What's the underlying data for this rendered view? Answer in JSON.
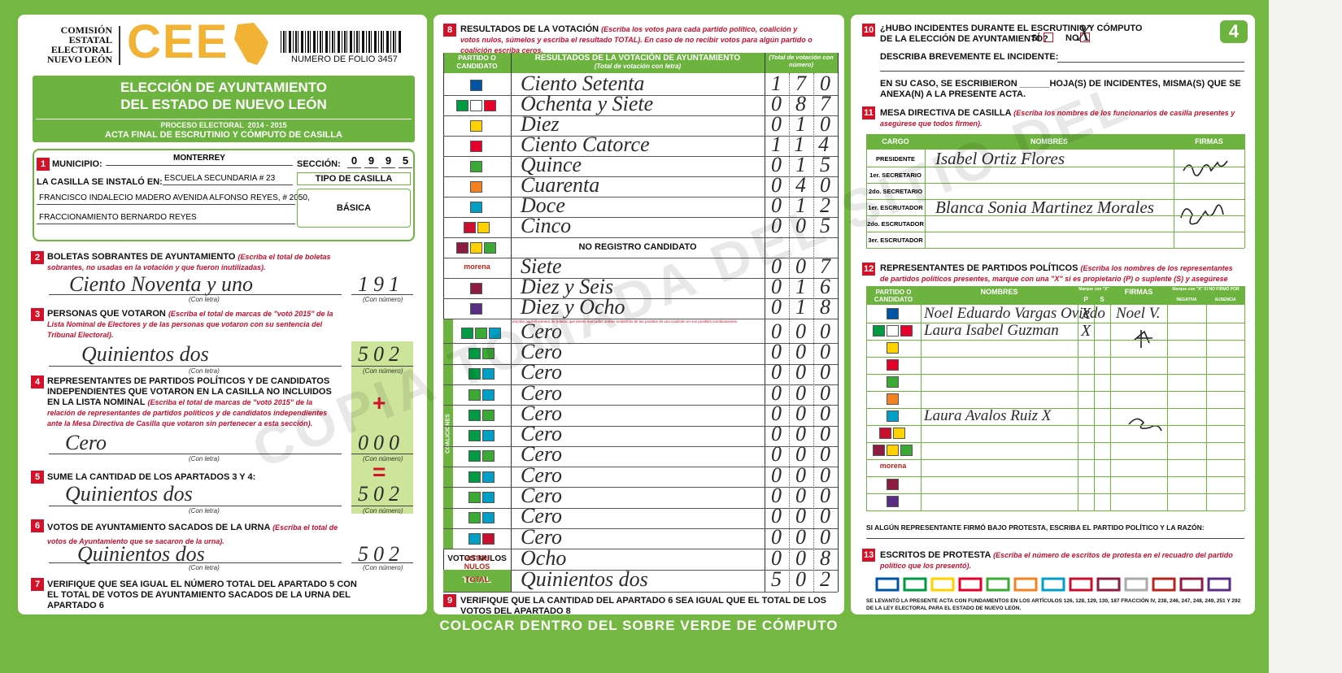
{
  "header": {
    "commission": [
      "COMISIÓN",
      "ESTATAL",
      "ELECTORAL",
      "NUEVO LEÓN"
    ],
    "logo": "CEE",
    "folio": "NUMERO DE FOLIO 3457",
    "page": "4"
  },
  "title": {
    "line1": "ELECCIÓN DE AYUNTAMIENTO",
    "line2": "DEL ESTADO DE NUEVO LEÓN",
    "process": "PROCESO ELECTORAL  2014 - 2015",
    "act": "ACTA FINAL DE ESCRUTINIO Y CÓMPUTO DE CASILLA"
  },
  "labels": {
    "letters": "(Con letra)",
    "number": "(Con número)"
  },
  "s1": {
    "num": "1",
    "municipio_label": "MUNICIPIO:",
    "municipio": "MONTERREY",
    "seccion_label": "SECCIÓN:",
    "seccion": [
      "0",
      "9",
      "9",
      "5"
    ],
    "installed_label": "LA CASILLA SE INSTALÓ EN:",
    "school": "ESCUELA SECUNDARIA # 23",
    "address1": "FRANCISCO INDALECIO MADERO AVENIDA ALFONSO REYES, # 2050,",
    "address2": "FRACCIONAMIENTO BERNARDO REYES",
    "type_label": "TIPO DE CASILLA",
    "type": "BÁSICA"
  },
  "s2": {
    "num": "2",
    "title": "BOLETAS SOBRANTES DE AYUNTAMIENTO",
    "note": "(Escriba el total de boletas sobrantes, no usadas en la votación y que fueron inutilizadas).",
    "letters": "Ciento Noventa y uno",
    "number": "191"
  },
  "s3": {
    "num": "3",
    "title": "PERSONAS QUE VOTARON",
    "note": "(Escriba el total de marcas de \"votó 2015\" de la Lista Nominal de Electores y de las personas que votaron con su sentencia del Tribunal Electoral).",
    "letters": "Quinientos dos",
    "number": "502"
  },
  "s4": {
    "num": "4",
    "title": "REPRESENTANTES DE PARTIDOS POLÍTICOS Y DE CANDIDATOS INDEPENDIENTES QUE VOTARON EN LA CASILLA NO INCLUIDOS EN LA LISTA NOMINAL",
    "note": "(Escriba el total de marcas de \"votó 2015\" de la relación de representantes de partidos políticos y de candidatos independientes ante la Mesa Directiva de Casilla que votaron sin pertenecer a esta sección).",
    "letters": "Cero",
    "number": "000",
    "sign": "+"
  },
  "s5": {
    "num": "5",
    "title": "SUME LA CANTIDAD DE LOS APARTADOS 3 Y 4:",
    "letters": "Quinientos dos",
    "number": "502",
    "sign": "="
  },
  "s6": {
    "num": "6",
    "title": "VOTOS DE AYUNTAMIENTO SACADOS DE LA URNA",
    "note": "(Escriba el total de votos de Ayuntamiento que se sacaron de la urna).",
    "letters": "Quinientos dos",
    "number": "502"
  },
  "s7": {
    "num": "7",
    "title": "VERIFIQUE QUE SEA IGUAL EL NÚMERO TOTAL DEL APARTADO 5 CON EL TOTAL DE VOTOS DE AYUNTAMIENTO SACADOS DE LA URNA DEL APARTADO 6"
  },
  "s8": {
    "num": "8",
    "title": "RESULTADOS DE LA VOTACIÓN",
    "note": "(Escriba los votos para cada partido político, coalición y votos nulos, súmelos y escriba el resultado TOTAL).",
    "note2": "En caso de no recibir votos para algún partido o coalición escriba ceros.",
    "headers": {
      "party": "PARTIDO O CANDIDATO",
      "results": "RESULTADOS DE LA VOTACIÓN DE AYUNTAMIENTO",
      "letters": "(Total de votación con letra)",
      "number": "(Total de votación con número)"
    },
    "coalition_label": "COALICIONES",
    "coalition_note": "Escriba aquí el número de boletas que tienen marcadas ambos emblemas de los partidos de una coalición en sus posibles combinaciones.",
    "rows": [
      {
        "logo": [
          "#0054a6"
        ],
        "letters": "Ciento Setenta",
        "number": "170"
      },
      {
        "logo": [
          "#009a44",
          "#ffffff",
          "#e4002b"
        ],
        "letters": "Ochenta y Siete",
        "number": "087"
      },
      {
        "logo": [
          "#ffd100"
        ],
        "letters": "Diez",
        "number": "010"
      },
      {
        "logo": [
          "#e4002b"
        ],
        "letters": "Ciento Catorce",
        "number": "114"
      },
      {
        "logo": [
          "#3aaa35"
        ],
        "letters": "Quince",
        "number": "015"
      },
      {
        "logo": [
          "#f58220"
        ],
        "letters": "Cuarenta",
        "number": "040"
      },
      {
        "logo": [
          "#00a0c6"
        ],
        "letters": "Doce",
        "number": "012"
      },
      {
        "logo": [
          "#c8102e",
          "#ffd100"
        ],
        "letters": "Cinco",
        "number": "005"
      },
      {
        "logo": [
          "#8c1d40",
          "#ffd100",
          "#3aaa35"
        ],
        "text": "NO REGISTRO CANDIDATO"
      },
      {
        "label": "morena",
        "letters": "Siete",
        "number": "007"
      },
      {
        "logo": [
          "#8c1d40"
        ],
        "letters": "Diez y Seis",
        "number": "016"
      },
      {
        "logo": [
          "#5b2c83"
        ],
        "letters": "Diez y Ocho",
        "number": "018"
      }
    ],
    "coalitions": [
      {
        "logo": [
          "#009a44",
          "#3aaa35",
          "#00a0c6"
        ],
        "letters": "Cero",
        "number": "000"
      },
      {
        "logo": [
          "#009a44",
          "#3aaa35"
        ],
        "letters": "Cero",
        "number": "000"
      },
      {
        "logo": [
          "#009a44",
          "#00a0c6"
        ],
        "letters": "Cero",
        "number": "000"
      },
      {
        "logo": [
          "#3aaa35",
          "#00a0c6"
        ],
        "letters": "Cero",
        "number": "000"
      },
      {
        "logo": [
          "#009a44",
          "#3aaa35"
        ],
        "letters": "Cero",
        "number": "000"
      },
      {
        "logo": [
          "#009a44",
          "#00a0c6"
        ],
        "letters": "Cero",
        "number": "000"
      },
      {
        "logo": [
          "#009a44",
          "#3aaa35"
        ],
        "letters": "Cero",
        "number": "000"
      },
      {
        "logo": [
          "#009a44",
          "#00a0c6"
        ],
        "letters": "Cero",
        "number": "000"
      },
      {
        "logo": [
          "#3aaa35",
          "#00a0c6"
        ],
        "letters": "Cero",
        "number": "000"
      },
      {
        "logo": [
          "#3aaa35",
          "#00a0c6"
        ],
        "letters": "Cero",
        "number": "000"
      },
      {
        "logo": [
          "#00a0c6",
          "#c8102e"
        ],
        "letters": "Cero",
        "number": "000"
      }
    ],
    "nulls": {
      "label": "VOTOS NULOS",
      "letters": "Ocho",
      "number": "008"
    },
    "total": {
      "label": "TOTAL",
      "letters": "Quinientos dos",
      "number": "502"
    }
  },
  "s9": {
    "num": "9",
    "title": "VERIFIQUE QUE LA CANTIDAD DEL APARTADO 6 SEA IGUAL QUE EL TOTAL DE LOS VOTOS DEL APARTADO 8"
  },
  "s10": {
    "num": "10",
    "question": "¿HUBO INCIDENTES DURANTE EL ESCRUTINIO Y CÓMPUTO DE LA ELECCIÓN DE AYUNTAMIENTO?",
    "yes": "SÍ",
    "no": "NO",
    "mark": "X",
    "describe": "DESCRIBA BREVEMENTE EL INCIDENTE:",
    "sheets": "EN SU CASO, SE ESCRIBIERON ______HOJA(S) DE INCIDENTES, MISMA(S) QUE SE ANEXA(N) A LA PRESENTE ACTA."
  },
  "s11": {
    "num": "11",
    "title": "MESA DIRECTIVA DE CASILLA",
    "note": "(Escriba los nombres de los funcionarios de casilla presentes y asegúrese que todos firmen).",
    "headers": {
      "role": "CARGO",
      "names": "NOMBRES",
      "signatures": "FIRMAS"
    },
    "rows": [
      {
        "role": "PRESIDENTE",
        "name": "Isabel Ortiz Flores"
      },
      {
        "role": "1er. SECRETARIO"
      },
      {
        "role": "2do. SECRETARIO"
      },
      {
        "role": "1er. ESCRUTADOR",
        "name": "Blanca Sonia Martinez Morales"
      },
      {
        "role": "2do. ESCRUTADOR"
      },
      {
        "role": "3er. ESCRUTADOR"
      }
    ]
  },
  "s12": {
    "num": "12",
    "title": "REPRESENTANTES DE PARTIDOS POLÍTICOS",
    "note": "(Escriba los nombres de los representantes de partidos políticos presentes, marque con una \"X\" si es propietario (P) o suplente (S) y asegúrese que todos firmen).",
    "headers": {
      "party": "PARTIDO O CANDIDATO",
      "names": "NOMBRES",
      "mark": "Marque con \"X\"",
      "p": "P",
      "s": "S",
      "signatures": "FIRMAS",
      "protest": "Marque con \"X\" SI NO FIRMÓ POR",
      "refusal": "NEGATIVA",
      "absence": "AUSENCIA"
    },
    "rows": [
      {
        "logo": [
          "#0054a6"
        ],
        "name": "Noel Eduardo Vargas Oviedo",
        "p": "X",
        "signature": "Noel V."
      },
      {
        "logo": [
          "#009a44",
          "#ffffff",
          "#e4002b"
        ],
        "name": "Laura Isabel Guzman",
        "p": "X"
      },
      {
        "logo": [
          "#ffd100"
        ]
      },
      {
        "logo": [
          "#e4002b"
        ]
      },
      {
        "logo": [
          "#3aaa35"
        ]
      },
      {
        "logo": [
          "#f58220"
        ]
      },
      {
        "logo": [
          "#00a0c6"
        ],
        "name": "Laura Avalos Ruiz X"
      },
      {
        "logo": [
          "#c8102e",
          "#ffd100"
        ]
      },
      {
        "logo": [
          "#8c1d40",
          "#ffd100",
          "#3aaa35"
        ]
      },
      {
        "label": "morena"
      },
      {
        "logo": [
          "#8c1d40"
        ]
      },
      {
        "logo": [
          "#5b2c83"
        ]
      }
    ],
    "footnote": "SI ALGÚN REPRESENTANTE FIRMÓ BAJO PROTESTA, ESCRIBA EL PARTIDO POLÍTICO Y LA RAZÓN:"
  },
  "s13": {
    "num": "13",
    "title": "ESCRITOS DE PROTESTA",
    "note": "(Escriba el número de escritos de protesta en el recuadro del partido político que los presentó).",
    "legal": "SE LEVANTÓ LA PRESENTE ACTA CON FUNDAMENTOS EN LOS ARTÍCULOS 126, 128, 129, 130, 187 FRACCIÓN IV, 238, 246, 247, 248, 249, 251 Y 292 DE LA LEY ELECTORAL PARA EL ESTADO DE NUEVO LEÓN."
  },
  "footer": {
    "instruction": "COLOCAR DENTRO DEL SOBRE VERDE DE CÓMPUTO",
    "watermark": "COPIA TOMADA DEL SITIO DEL"
  }
}
